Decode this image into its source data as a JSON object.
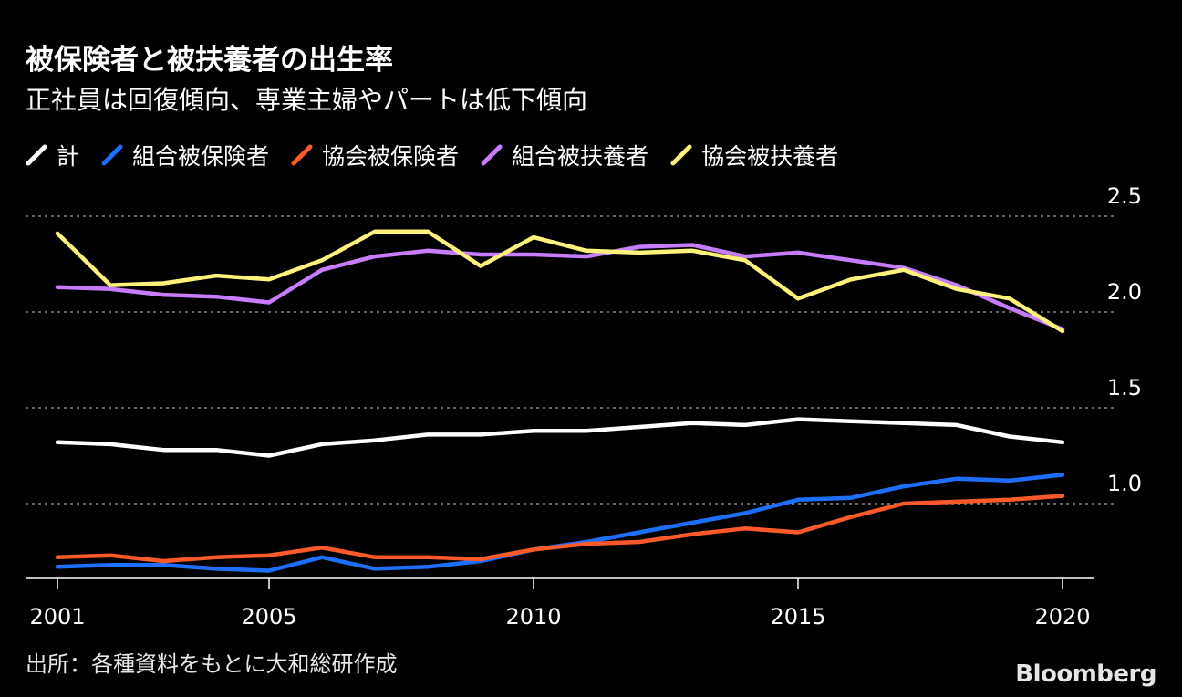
{
  "title": "被保険者と被扶養者の出生率",
  "subtitle": "正社員は回復傾向、専業主婦やパートは低下傾向",
  "source": "出所：各種資料をもとに大和総研作成",
  "logo": "Bloomberg",
  "colors": {
    "background": "#000000",
    "grid": "#888888",
    "total": "#ffffff",
    "union_insured": "#1f6fff",
    "kyokai_insured": "#ff5a2a",
    "union_dependent": "#c77dff",
    "kyokai_dependent": "#fff27a"
  },
  "chart_data": {
    "type": "line",
    "title": "被保険者と被扶養者の出生率",
    "subtitle": "正社員は回復傾向、専業主婦やパートは低下傾向",
    "xlabel": "",
    "ylabel": "",
    "x": [
      2001,
      2002,
      2003,
      2004,
      2005,
      2006,
      2007,
      2008,
      2009,
      2010,
      2011,
      2012,
      2013,
      2014,
      2015,
      2016,
      2017,
      2018,
      2019,
      2020
    ],
    "x_ticks": [
      "2001",
      "2005",
      "2010",
      "2015",
      "2020"
    ],
    "x_tick_values": [
      2001,
      2005,
      2010,
      2015,
      2020
    ],
    "xlim": [
      2001,
      2020
    ],
    "y_ticks": [
      "2.5",
      "2.0",
      "1.5",
      "1.0"
    ],
    "y_tick_values": [
      2.5,
      2.0,
      1.5,
      1.0
    ],
    "ylim": [
      0.6,
      2.5
    ],
    "grid": true,
    "series": [
      {
        "key": "total",
        "name": "計",
        "color": "#ffffff",
        "values": [
          1.32,
          1.31,
          1.28,
          1.28,
          1.25,
          1.31,
          1.33,
          1.36,
          1.36,
          1.38,
          1.38,
          1.4,
          1.42,
          1.41,
          1.44,
          1.43,
          1.42,
          1.41,
          1.35,
          1.32
        ]
      },
      {
        "key": "union_insured",
        "name": "組合被保険者",
        "color": "#1f6fff",
        "values": [
          0.67,
          0.68,
          0.68,
          0.66,
          0.65,
          0.72,
          0.66,
          0.67,
          0.7,
          0.76,
          0.8,
          0.85,
          0.9,
          0.95,
          1.02,
          1.03,
          1.09,
          1.13,
          1.12,
          1.15
        ]
      },
      {
        "key": "kyokai_insured",
        "name": "協会被保険者",
        "color": "#ff5a2a",
        "values": [
          0.72,
          0.73,
          0.7,
          0.72,
          0.73,
          0.77,
          0.72,
          0.72,
          0.71,
          0.76,
          0.79,
          0.8,
          0.84,
          0.87,
          0.85,
          0.93,
          1.0,
          1.01,
          1.02,
          1.04
        ]
      },
      {
        "key": "union_dependent",
        "name": "組合被扶養者",
        "color": "#c77dff",
        "values": [
          2.13,
          2.12,
          2.09,
          2.08,
          2.05,
          2.22,
          2.29,
          2.32,
          2.3,
          2.3,
          2.29,
          2.34,
          2.35,
          2.29,
          2.31,
          2.27,
          2.23,
          2.14,
          2.02,
          1.91
        ]
      },
      {
        "key": "kyokai_dependent",
        "name": "協会被扶養者",
        "color": "#fff27a",
        "values": [
          2.41,
          2.14,
          2.15,
          2.19,
          2.17,
          2.27,
          2.42,
          2.42,
          2.24,
          2.39,
          2.32,
          2.31,
          2.32,
          2.27,
          2.07,
          2.17,
          2.22,
          2.12,
          2.07,
          1.9
        ]
      }
    ]
  }
}
